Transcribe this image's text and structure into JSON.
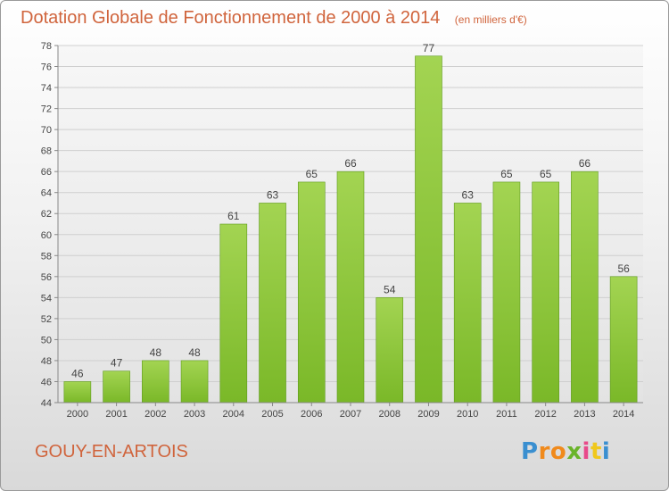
{
  "chart_data": {
    "type": "bar",
    "title": "Dotation Globale de Fonctionnement de 2000 à 2014",
    "unit_note": "(en milliers d'€)",
    "categories": [
      "2000",
      "2001",
      "2002",
      "2003",
      "2004",
      "2005",
      "2006",
      "2007",
      "2008",
      "2009",
      "2010",
      "2011",
      "2012",
      "2013",
      "2014"
    ],
    "values": [
      46,
      47,
      48,
      48,
      61,
      63,
      65,
      66,
      54,
      77,
      63,
      65,
      65,
      66,
      56
    ],
    "ylim": [
      44,
      78
    ],
    "yticks": [
      44,
      46,
      48,
      50,
      52,
      54,
      56,
      58,
      60,
      62,
      64,
      66,
      68,
      70,
      72,
      74,
      76,
      78
    ],
    "grid": true,
    "bar_color": "#7ab828",
    "bar_color_light": "#a3d452",
    "title_color": "#d0643c"
  },
  "footer": {
    "town": "GOUY-EN-ARTOIS",
    "brand_letters": [
      "P",
      "r",
      "o",
      "x",
      "i",
      "t",
      "i"
    ],
    "brand_colors": [
      "#3a8fd0",
      "#f08a1c",
      "#f08a1c",
      "#6ab42a",
      "#e84a8a",
      "#f0c81c",
      "#3a8fd0"
    ]
  }
}
